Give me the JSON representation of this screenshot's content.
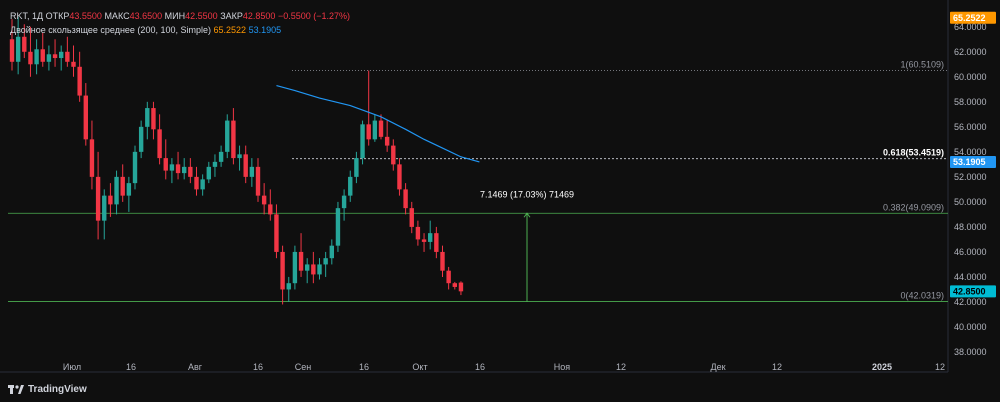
{
  "header": {
    "ticker": "RKT, 1Д",
    "open_label": "ОТКР",
    "open": "43.5500",
    "high_label": "МАКС",
    "high": "43.6500",
    "low_label": "МИН",
    "low": "42.5500",
    "close_label": "ЗАКР",
    "close": "42.8500",
    "change": "−0.5500 (−1.27%)",
    "indicator": "Двойное скользящее среднее (200, 100, Simple)",
    "ma1": "65.2522",
    "ma2": "53.1905"
  },
  "logo_text": "TradingView",
  "colors": {
    "up": "#26a69a",
    "down": "#f23645",
    "ma": "#2196f3",
    "fib": "#4caf50",
    "bg": "#0f0f0f"
  },
  "chart_data": {
    "type": "candlestick",
    "ylim": [
      37.2,
      65.5
    ],
    "y_ticks": [
      "38.0000",
      "40.0000",
      "42.0000",
      "44.0000",
      "46.0000",
      "48.0000",
      "50.0000",
      "52.0000",
      "54.0000",
      "56.0000",
      "58.0000",
      "60.0000",
      "62.0000",
      "64.0000"
    ],
    "x_ticks": [
      "Июл",
      "16",
      "Авг",
      "16",
      "Сен",
      "16",
      "Окт",
      "16",
      "Ноя",
      "12",
      "Дек",
      "12",
      "2025",
      "12"
    ],
    "price_labels": {
      "ma_top": "65.2522",
      "ma_current": "53.1905",
      "last_price": "42.8500"
    },
    "fib_levels": [
      {
        "label": "1(60.5109)",
        "value": 60.5109
      },
      {
        "label": "0.618(53.4519)",
        "value": 53.4519
      },
      {
        "label": "0.382(49.0909)",
        "value": 49.0909
      },
      {
        "label": "0(42.0319)",
        "value": 42.0319
      }
    ],
    "measure_label": "7.1469 (17.03%) 71469",
    "candles": [
      [
        63.0,
        64.6,
        60.5,
        61.2
      ],
      [
        61.2,
        64.8,
        60.2,
        63.2
      ],
      [
        63.2,
        64.2,
        61.5,
        62.0
      ],
      [
        62.0,
        64.0,
        60.0,
        61.0
      ],
      [
        61.0,
        63.0,
        60.2,
        62.2
      ],
      [
        62.2,
        63.5,
        60.8,
        61.2
      ],
      [
        61.2,
        62.5,
        60.5,
        61.8
      ],
      [
        61.8,
        63.0,
        60.8,
        61.5
      ],
      [
        61.5,
        62.5,
        60.5,
        62.0
      ],
      [
        62.0,
        63.2,
        60.8,
        61.2
      ],
      [
        61.2,
        62.5,
        60.0,
        60.8
      ],
      [
        60.8,
        62.0,
        58.0,
        58.5
      ],
      [
        58.5,
        59.5,
        54.5,
        55.0
      ],
      [
        55.0,
        56.5,
        51.0,
        52.0
      ],
      [
        52.0,
        54.0,
        47.0,
        48.5
      ],
      [
        48.5,
        51.0,
        47.0,
        50.5
      ],
      [
        50.5,
        51.5,
        48.8,
        49.8
      ],
      [
        49.8,
        52.5,
        49.0,
        52.0
      ],
      [
        52.0,
        53.0,
        50.0,
        50.5
      ],
      [
        50.5,
        52.0,
        49.2,
        51.5
      ],
      [
        51.5,
        54.5,
        51.0,
        54.0
      ],
      [
        54.0,
        56.5,
        53.5,
        56.0
      ],
      [
        56.0,
        58.0,
        55.0,
        57.5
      ],
      [
        57.5,
        58.0,
        55.0,
        55.8
      ],
      [
        55.8,
        57.0,
        53.0,
        53.5
      ],
      [
        53.5,
        55.0,
        51.8,
        52.5
      ],
      [
        52.5,
        53.5,
        51.5,
        53.0
      ],
      [
        53.0,
        54.0,
        51.8,
        52.3
      ],
      [
        52.3,
        53.5,
        51.8,
        52.8
      ],
      [
        52.8,
        53.5,
        51.5,
        52.0
      ],
      [
        52.0,
        52.8,
        50.5,
        51.0
      ],
      [
        51.0,
        52.2,
        50.5,
        51.8
      ],
      [
        51.8,
        53.2,
        51.5,
        52.8
      ],
      [
        52.8,
        53.8,
        52.0,
        53.2
      ],
      [
        53.2,
        54.5,
        52.8,
        54.0
      ],
      [
        54.0,
        57.0,
        53.5,
        56.5
      ],
      [
        56.5,
        57.5,
        53.0,
        53.5
      ],
      [
        53.5,
        54.5,
        52.5,
        53.8
      ],
      [
        53.8,
        54.5,
        51.5,
        52.0
      ],
      [
        52.0,
        53.5,
        51.2,
        52.8
      ],
      [
        52.8,
        53.5,
        50.0,
        50.5
      ],
      [
        50.5,
        51.5,
        49.0,
        49.8
      ],
      [
        49.8,
        51.0,
        48.5,
        49.0
      ],
      [
        49.0,
        49.8,
        45.5,
        46.0
      ],
      [
        46.0,
        46.5,
        41.8,
        43.0
      ],
      [
        43.0,
        44.0,
        42.0,
        43.5
      ],
      [
        43.5,
        46.5,
        43.0,
        46.0
      ],
      [
        46.0,
        47.5,
        44.0,
        44.5
      ],
      [
        44.5,
        45.5,
        43.5,
        45.0
      ],
      [
        45.0,
        46.0,
        43.5,
        44.2
      ],
      [
        44.2,
        45.5,
        43.8,
        45.0
      ],
      [
        45.0,
        46.0,
        44.0,
        45.5
      ],
      [
        45.5,
        47.0,
        45.0,
        46.5
      ],
      [
        46.5,
        50.0,
        46.0,
        49.5
      ],
      [
        49.5,
        51.0,
        48.5,
        50.5
      ],
      [
        50.5,
        52.5,
        50.0,
        52.0
      ],
      [
        52.0,
        54.0,
        51.5,
        53.5
      ],
      [
        53.5,
        56.5,
        53.0,
        56.2
      ],
      [
        56.2,
        60.5,
        54.5,
        55.0
      ],
      [
        55.0,
        57.0,
        54.8,
        56.5
      ],
      [
        56.5,
        57.0,
        55.0,
        55.2
      ],
      [
        55.2,
        56.5,
        54.0,
        54.5
      ],
      [
        54.5,
        55.0,
        52.5,
        53.0
      ],
      [
        53.0,
        53.5,
        50.5,
        51.0
      ],
      [
        51.0,
        51.5,
        49.0,
        49.5
      ],
      [
        49.5,
        50.0,
        47.5,
        48.0
      ],
      [
        48.0,
        48.5,
        46.5,
        47.0
      ],
      [
        47.0,
        47.5,
        46.0,
        46.8
      ],
      [
        46.8,
        48.5,
        46.2,
        47.5
      ],
      [
        47.5,
        48.0,
        45.5,
        46.0
      ],
      [
        46.0,
        46.5,
        44.0,
        44.5
      ],
      [
        44.5,
        44.8,
        43.0,
        43.5
      ],
      [
        43.5,
        43.6,
        43.0,
        43.2
      ],
      [
        43.55,
        43.65,
        42.55,
        42.85
      ]
    ],
    "ma_series": [
      [
        43,
        59.3
      ],
      [
        46,
        58.9
      ],
      [
        50,
        58.3
      ],
      [
        55,
        57.7
      ],
      [
        60,
        56.8
      ],
      [
        64,
        55.8
      ],
      [
        67,
        55.0
      ],
      [
        70,
        54.3
      ],
      [
        73,
        53.6
      ],
      [
        76,
        53.19
      ]
    ]
  }
}
